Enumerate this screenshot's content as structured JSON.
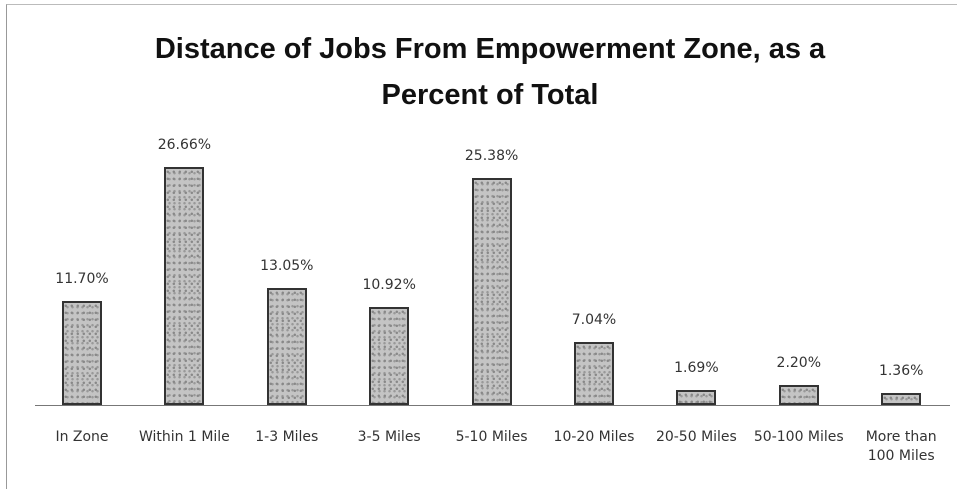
{
  "chart_data": {
    "type": "bar",
    "title": "Distance of Jobs From Empowerment Zone, as a Percent of Total",
    "categories": [
      "In Zone",
      "Within 1 Mile",
      "1-3 Miles",
      "3-5 Miles",
      "5-10 Miles",
      "10-20 Miles",
      "20-50 Miles",
      "50-100 Miles",
      "More than 100 Miles"
    ],
    "values": [
      11.7,
      26.66,
      13.05,
      10.92,
      25.38,
      7.04,
      1.69,
      2.2,
      1.36
    ],
    "value_labels": [
      "11.70%",
      "26.66%",
      "13.05%",
      "10.92%",
      "25.38%",
      "7.04%",
      "1.69%",
      "2.20%",
      "1.36%"
    ],
    "color": "#b8b8b8"
  }
}
